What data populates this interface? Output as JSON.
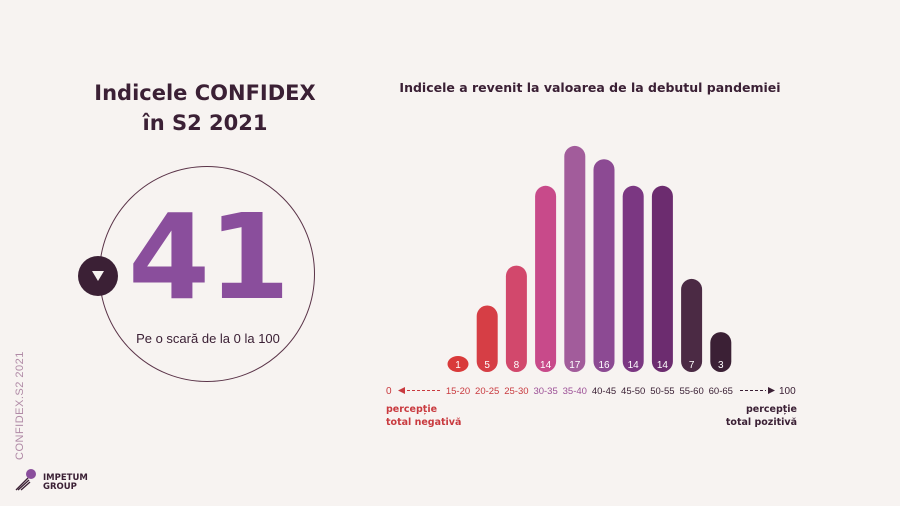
{
  "header": {
    "title_line1": "Indicele CONFIDEX",
    "title_line2": "în S2 2021"
  },
  "index": {
    "value": "41",
    "scale_note": "Pe o scară de la 0 la 100",
    "trend": "down",
    "trend_icon": "triangle-down-icon"
  },
  "side_label": "CONFIDEX.S2 2021",
  "logo": {
    "line1": "IMPETUM",
    "line2": "GROUP"
  },
  "chart_data": {
    "type": "bar",
    "title": "Indicele a revenit la valoarea de la debutul pandemiei",
    "categories": [
      "15-20",
      "20-25",
      "25-30",
      "30-35",
      "35-40",
      "40-45",
      "45-50",
      "50-55",
      "55-60",
      "60-65"
    ],
    "values": [
      1,
      5,
      8,
      14,
      17,
      16,
      14,
      14,
      7,
      3
    ],
    "value_labels": [
      "1",
      "5",
      "8",
      "14",
      "17",
      "16",
      "14",
      "14",
      "7",
      "3"
    ],
    "colors": [
      "#d93a3a",
      "#d63e45",
      "#d2486c",
      "#c84a8a",
      "#a25c9b",
      "#8c4a93",
      "#7b3782",
      "#6c2c6f",
      "#4b2a44",
      "#3b2035"
    ],
    "axis": {
      "min_label": "0",
      "max_label": "100",
      "min_color": "#c93a3f",
      "max_color": "#3b2035"
    },
    "negative_label_line1": "percepție",
    "negative_label_line2": "total negativă",
    "positive_label_line1": "percepție",
    "positive_label_line2": "total pozitivă"
  }
}
